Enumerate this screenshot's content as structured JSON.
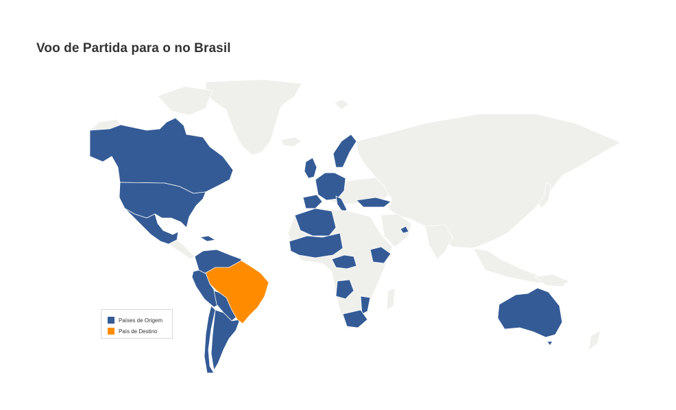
{
  "title": "Voo de Partida para o no Brasil",
  "colors": {
    "origin": "#345b96",
    "destination": "#ff8c00",
    "land": "#efefec"
  },
  "legend": {
    "items": [
      {
        "label": "Países de Origem",
        "color": "#345b96"
      },
      {
        "label": "País de Destino",
        "color": "#ff8c00"
      }
    ]
  },
  "regions": {
    "destination": [
      "Brazil"
    ],
    "origin": [
      "Canada",
      "United States",
      "Mexico",
      "Cuba",
      "Colombia",
      "Venezuela",
      "Guyana",
      "Suriname",
      "French Guiana",
      "Ecuador",
      "Peru",
      "Bolivia",
      "Paraguay",
      "Chile",
      "Argentina",
      "Uruguay",
      "Ireland",
      "United Kingdom",
      "Portugal",
      "Spain",
      "France",
      "Belgium",
      "Netherlands",
      "Germany",
      "Switzerland",
      "Italy",
      "Denmark",
      "Norway",
      "Sweden",
      "Poland",
      "Turkey",
      "Morocco",
      "Algeria",
      "Mauritania",
      "Senegal",
      "Mali",
      "Niger",
      "Guinea",
      "Ivory Coast",
      "Ghana",
      "Nigeria",
      "Cameroon",
      "Ethiopia",
      "Angola",
      "Mozambique",
      "South Africa",
      "United Arab Emirates",
      "Australia"
    ]
  }
}
